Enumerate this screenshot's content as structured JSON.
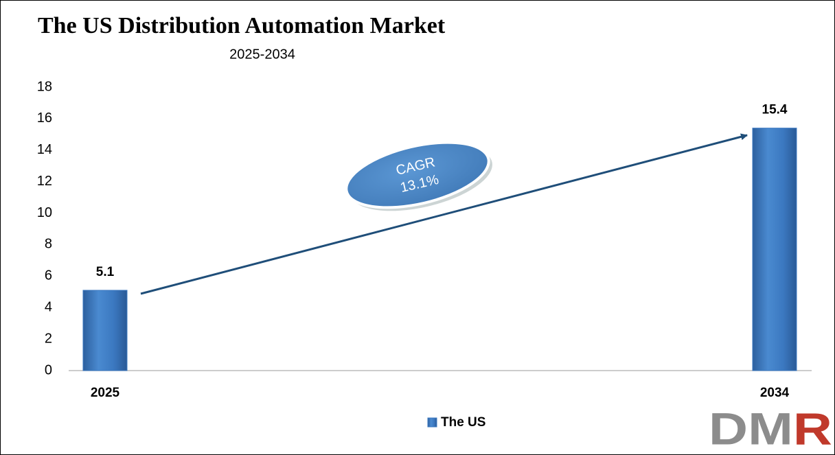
{
  "chart_data": {
    "type": "bar",
    "title": "The US Distribution Automation Market",
    "subtitle": "2025-2034",
    "categories": [
      "2025",
      "2034"
    ],
    "series": [
      {
        "name": "The US",
        "color": "#3b78c0",
        "values": [
          5.1,
          15.4
        ]
      }
    ],
    "ylim": [
      0,
      18
    ],
    "yticks": [
      0,
      2,
      4,
      6,
      8,
      10,
      12,
      14,
      16,
      18
    ],
    "annotation": [
      "CAGR",
      "13.1%"
    ],
    "legend": "bottom",
    "logo": "DMR"
  }
}
